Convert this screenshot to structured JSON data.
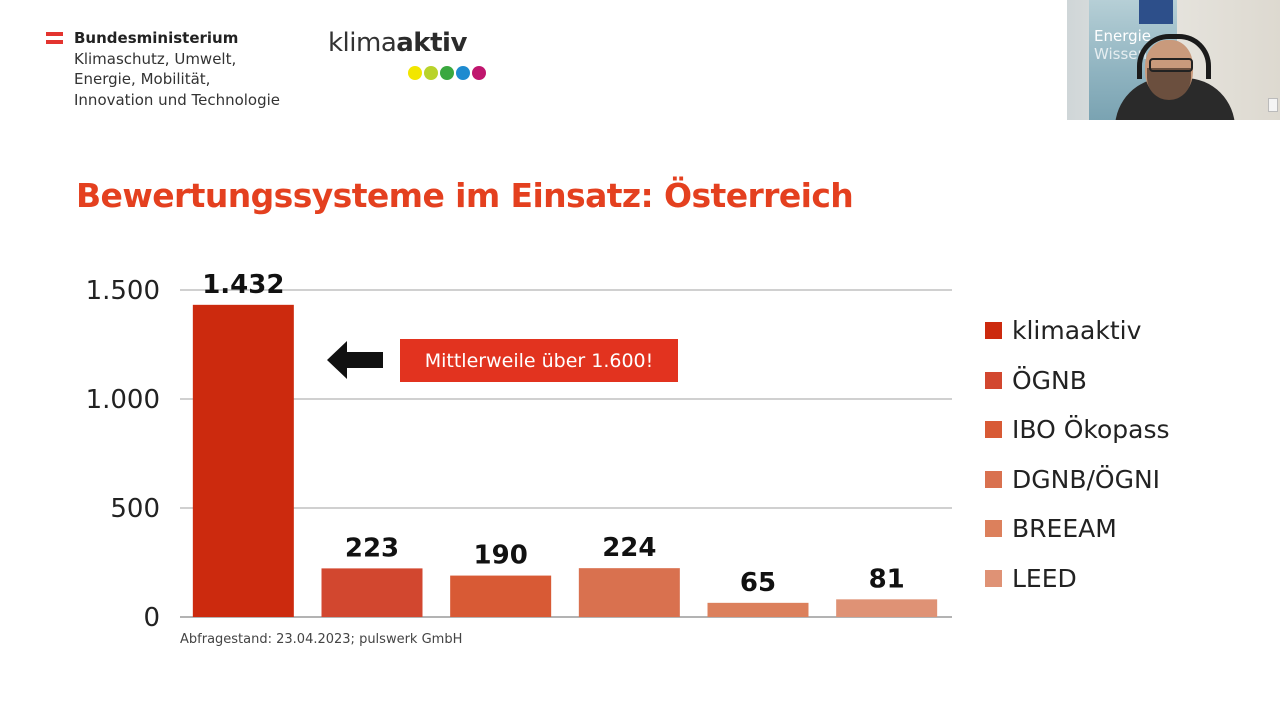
{
  "ministry": {
    "lines": [
      "Bundesministerium",
      "Klimaschutz, Umwelt,",
      "Energie, Mobilität,",
      "Innovation und Technologie"
    ]
  },
  "klimaaktiv_logo": {
    "light": "klima",
    "bold": "aktiv",
    "dot_colors": [
      "#f2e600",
      "#b9d32b",
      "#3aa83f",
      "#1e8bd0",
      "#c0166e"
    ]
  },
  "webcam": {
    "banner_text": [
      "Energie",
      "Wissen"
    ]
  },
  "slide": {
    "title": "Bewertungssysteme im Einsatz: Österreich",
    "callout": "Mittlerweile über 1.600!",
    "source": "Abfragestand: 23.04.2023; pulswerk GmbH"
  },
  "chart_data": {
    "type": "bar",
    "title": "Bewertungssysteme im Einsatz: Österreich",
    "categories": [
      "klimaaktiv",
      "ÖGNB",
      "IBO Ökopass",
      "DGNB/ÖGNI",
      "BREEAM",
      "LEED"
    ],
    "values": [
      1432,
      223,
      190,
      224,
      65,
      81
    ],
    "value_labels": [
      "1.432",
      "223",
      "190",
      "224",
      "65",
      "81"
    ],
    "colors": [
      "#cc2a0e",
      "#d2472f",
      "#d85a35",
      "#d9714f",
      "#dc805c",
      "#df9275"
    ],
    "ylim": [
      0,
      1500
    ],
    "yticks": [
      0,
      500,
      1000,
      1500
    ],
    "ytick_labels": [
      "0",
      "500",
      "1.000",
      "1.500"
    ],
    "grid": true,
    "legend": "right",
    "xlabel": "",
    "ylabel": ""
  }
}
